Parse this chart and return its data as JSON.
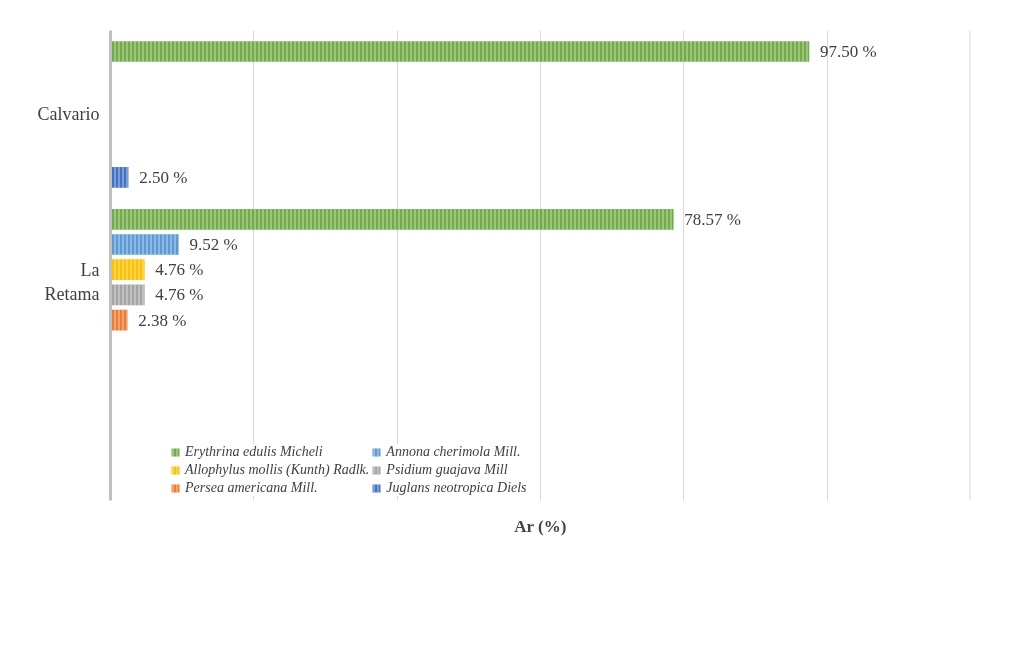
{
  "chart_data": {
    "type": "bar",
    "orientation": "horizontal",
    "xlabel": "Ar (%)",
    "categories": [
      "Calvario",
      "La\nRetama"
    ],
    "series": [
      {
        "name": "Erythrina edulis Micheli",
        "color": "#70ad47",
        "values": [
          97.5,
          78.57
        ],
        "value_labels": [
          "97.50 %",
          "78.57 %"
        ]
      },
      {
        "name": "Annona cherimola Mill.",
        "color": "#5b9bd5",
        "values": [
          null,
          9.52
        ],
        "value_labels": [
          null,
          "9.52 %"
        ]
      },
      {
        "name": "Allophylus mollis (Kunth) Radlk.",
        "color": "#ffc000",
        "values": [
          null,
          4.76
        ],
        "value_labels": [
          null,
          "4.76 %"
        ]
      },
      {
        "name": "Psidium guajava Mill",
        "color": "#a5a5a5",
        "values": [
          null,
          4.76
        ],
        "value_labels": [
          null,
          "4.76 %"
        ]
      },
      {
        "name": "Persea americana Mill.",
        "color": "#ed7d31",
        "values": [
          null,
          2.38
        ],
        "value_labels": [
          null,
          "2.38 %"
        ]
      },
      {
        "name": "Juglans neotropica Diels",
        "color": "#4472c4",
        "values": [
          2.5,
          null
        ],
        "value_labels": [
          "2.50 %",
          null
        ]
      }
    ],
    "xlim": [
      0,
      120
    ],
    "xticks": [
      {
        "value": 0,
        "label": null
      },
      {
        "value": 20,
        "label": null
      },
      {
        "value": 40,
        "label": null
      },
      {
        "value": 60,
        "label": null
      },
      {
        "value": 80,
        "label": null
      },
      {
        "value": 100,
        "label": null
      },
      {
        "value": 120,
        "label": null
      }
    ],
    "grid": "x",
    "legend": "bottom",
    "tick_labels": "y"
  }
}
